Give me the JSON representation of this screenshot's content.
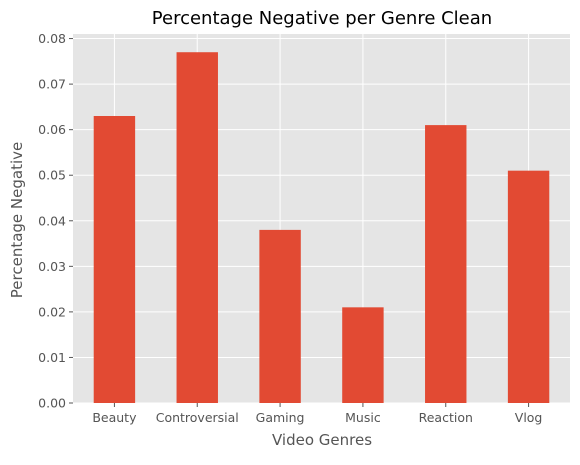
{
  "chart_data": {
    "type": "bar",
    "title": "Percentage Negative per Genre Clean",
    "xlabel": "Video Genres",
    "ylabel": "Percentage Negative",
    "categories": [
      "Beauty",
      "Controversial",
      "Gaming",
      "Music",
      "Reaction",
      "Vlog"
    ],
    "values": [
      0.063,
      0.077,
      0.038,
      0.021,
      0.061,
      0.051
    ],
    "ylim": [
      0,
      0.081
    ],
    "yticks": [
      "0.00",
      "0.01",
      "0.02",
      "0.03",
      "0.04",
      "0.05",
      "0.06",
      "0.07",
      "0.08"
    ],
    "grid": true,
    "style": "ggplot",
    "bar_color": "#E24A33",
    "background_color": "#E5E5E5",
    "grid_color": "#FFFFFF"
  }
}
